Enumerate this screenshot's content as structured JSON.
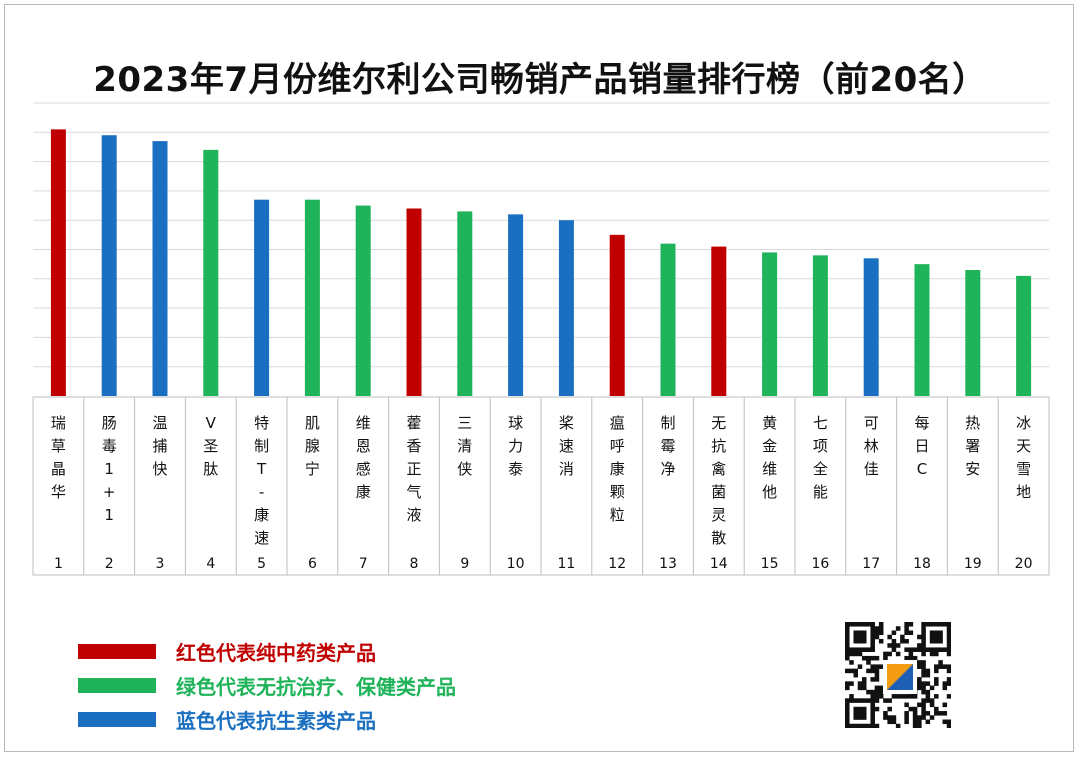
{
  "title": "2023年7月份维尔利公司畅销产品销量排行榜（前20名）",
  "colors": {
    "red": "#c00000",
    "green": "#1fb35a",
    "blue": "#1a6fc0",
    "grid": "#d9d9d9",
    "table_border": "#bfbfbf"
  },
  "legend": [
    {
      "key": "red",
      "label": "红色代表纯中药类产品",
      "color": "#c00000",
      "text_color": "#c00000"
    },
    {
      "key": "green",
      "label": "绿色代表无抗治疗、保健类产品",
      "color": "#1fb35a",
      "text_color": "#1fb35a"
    },
    {
      "key": "blue",
      "label": "蓝色代表抗生素类产品",
      "color": "#1a6fc0",
      "text_color": "#1a6fc0"
    }
  ],
  "qr_code": {
    "icon": "qr-code-icon"
  },
  "chart_data": {
    "type": "bar",
    "title": "2023年7月份维尔利公司畅销产品销量排行榜（前20名）",
    "categories": [
      "瑞草晶华",
      "肠毒1+1",
      "温捕快",
      "V圣肽",
      "特制T-康速",
      "肌腺宁",
      "维恩感康",
      "藿香正气液",
      "三清侠",
      "球力泰",
      "桨速消",
      "瘟呼康颗粒",
      "制霉净",
      "无抗禽菌灵散",
      "黄金维他",
      "七项全能",
      "可林佳",
      "每日C",
      "热署安",
      "冰天雪地"
    ],
    "category_lines": [
      [
        "瑞",
        "草",
        "晶",
        "华"
      ],
      [
        "肠",
        "毒",
        "1",
        "+",
        "1"
      ],
      [
        "温",
        "捕",
        "快"
      ],
      [
        "V",
        "圣",
        "肽"
      ],
      [
        "特",
        "制",
        "T",
        "-",
        "康",
        "速"
      ],
      [
        "肌",
        "腺",
        "宁"
      ],
      [
        "维",
        "恩",
        "感",
        "康"
      ],
      [
        "藿",
        "香",
        "正",
        "气",
        "液"
      ],
      [
        "三",
        "清",
        "侠"
      ],
      [
        "球",
        "力",
        "泰"
      ],
      [
        "桨",
        "速",
        "消"
      ],
      [
        "瘟",
        "呼",
        "康",
        "颗",
        "粒"
      ],
      [
        "制",
        "霉",
        "净"
      ],
      [
        "无",
        "抗",
        "禽",
        "菌",
        "灵",
        "散"
      ],
      [
        "黄",
        "金",
        "维",
        "他"
      ],
      [
        "七",
        "项",
        "全",
        "能"
      ],
      [
        "可",
        "林",
        "佳"
      ],
      [
        "每",
        "日",
        "C"
      ],
      [
        "热",
        "署",
        "安"
      ],
      [
        "冰",
        "天",
        "雪",
        "地"
      ]
    ],
    "ranks": [
      "1",
      "2",
      "3",
      "4",
      "5",
      "6",
      "7",
      "8",
      "9",
      "10",
      "11",
      "12",
      "13",
      "14",
      "15",
      "16",
      "17",
      "18",
      "19",
      "20"
    ],
    "values": [
      9.1,
      8.9,
      8.7,
      8.4,
      6.7,
      6.7,
      6.5,
      6.4,
      6.3,
      6.2,
      6.0,
      5.5,
      5.2,
      5.1,
      4.9,
      4.8,
      4.7,
      4.5,
      4.3,
      4.1
    ],
    "color_keys": [
      "red",
      "blue",
      "blue",
      "green",
      "blue",
      "green",
      "green",
      "red",
      "green",
      "blue",
      "blue",
      "red",
      "green",
      "red",
      "green",
      "green",
      "blue",
      "green",
      "green",
      "green"
    ],
    "ylim": [
      0,
      10
    ],
    "grid": true,
    "legend_position": "bottom-left"
  }
}
